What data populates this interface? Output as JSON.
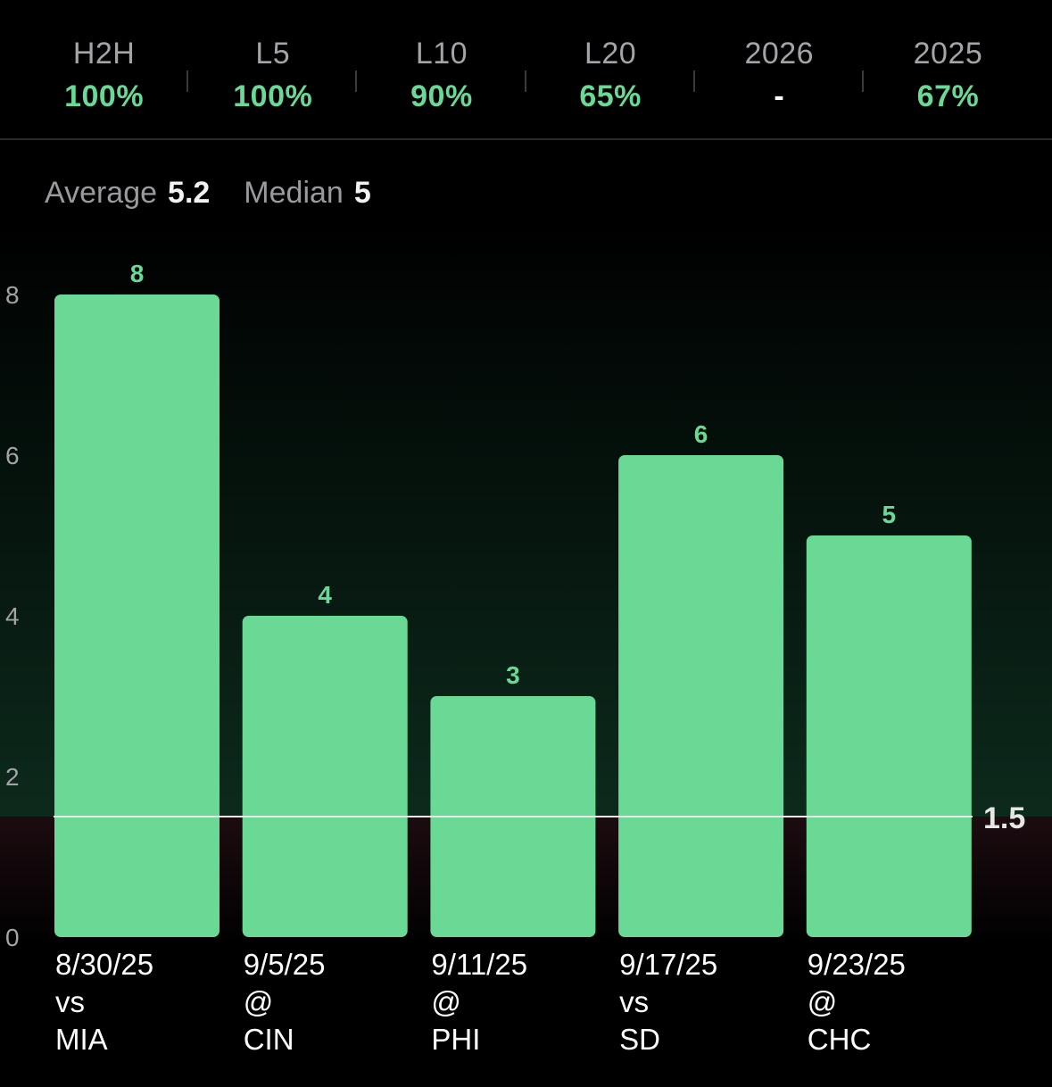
{
  "stats": [
    {
      "label": "H2H",
      "value": "100%",
      "status": "positive"
    },
    {
      "label": "L5",
      "value": "100%",
      "status": "positive"
    },
    {
      "label": "L10",
      "value": "90%",
      "status": "positive"
    },
    {
      "label": "L20",
      "value": "65%",
      "status": "positive"
    },
    {
      "label": "2026",
      "value": "-",
      "status": "neutral"
    },
    {
      "label": "2025",
      "value": "67%",
      "status": "positive"
    }
  ],
  "summary": {
    "average_label": "Average",
    "average_value": "5.2",
    "median_label": "Median",
    "median_value": "5"
  },
  "colors": {
    "bar": "#69d995",
    "positive_text": "#69d995",
    "line": "#e8e8e8",
    "over_zone_tint": "#0c2a1c",
    "under_zone_tint": "#1c0c10"
  },
  "chart_data": {
    "type": "bar",
    "categories": [
      {
        "date": "8/30/25",
        "venue": "vs",
        "opponent": "MIA"
      },
      {
        "date": "9/5/25",
        "venue": "@",
        "opponent": "CIN"
      },
      {
        "date": "9/11/25",
        "venue": "@",
        "opponent": "PHI"
      },
      {
        "date": "9/17/25",
        "venue": "vs",
        "opponent": "SD"
      },
      {
        "date": "9/23/25",
        "venue": "@",
        "opponent": "CHC"
      }
    ],
    "values": [
      8,
      4,
      3,
      6,
      5
    ],
    "data_labels": [
      "8",
      "4",
      "3",
      "6",
      "5"
    ],
    "yticks": [
      0,
      2,
      4,
      6,
      8
    ],
    "ylim": [
      0,
      8
    ],
    "line": {
      "value": 1.5,
      "label": "1.5"
    },
    "grid": false,
    "legend": "none"
  }
}
